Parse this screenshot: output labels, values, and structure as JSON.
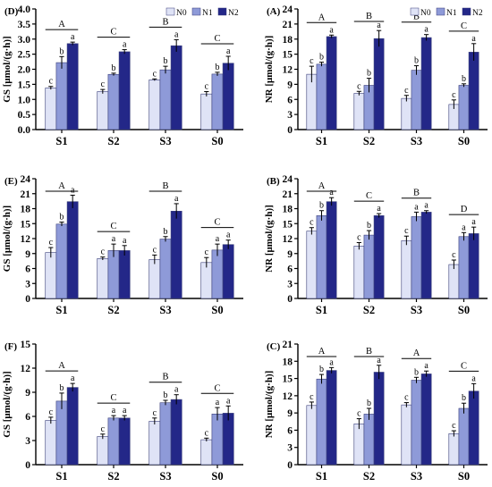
{
  "figure": {
    "legend_entries": [
      "N0",
      "N1",
      "N2"
    ],
    "colors": {
      "N0": "#dfe3f6",
      "N1": "#8e9ad8",
      "N2": "#232788"
    }
  },
  "chart_data": [
    {
      "type": "bar",
      "panel": "(D)",
      "ylabel": "GS [μmol/(g·h)]",
      "ylim": [
        0,
        4.0
      ],
      "yticks": [
        "0.0",
        "0.5",
        "1.0",
        "1.5",
        "2.0",
        "2.5",
        "3.0",
        "3.5",
        "4.0"
      ],
      "grid": false,
      "legend": "top-right",
      "categories": [
        "S1",
        "S2",
        "S3",
        "S0"
      ],
      "series": [
        {
          "name": "N0",
          "values": [
            1.38,
            1.26,
            1.65,
            1.18
          ],
          "errors": [
            0.05,
            0.07,
            0.03,
            0.08
          ],
          "letters": [
            "c",
            "c",
            "c",
            "c"
          ]
        },
        {
          "name": "N1",
          "values": [
            2.22,
            1.83,
            1.98,
            1.84
          ],
          "errors": [
            0.2,
            0.04,
            0.12,
            0.06
          ],
          "letters": [
            "b",
            "b",
            "b",
            "b"
          ]
        },
        {
          "name": "N2",
          "values": [
            2.85,
            2.58,
            2.78,
            2.2
          ],
          "errors": [
            0.05,
            0.07,
            0.2,
            0.23
          ],
          "letters": [
            "a",
            "a",
            "a",
            "a"
          ]
        }
      ],
      "group_letters": [
        "A",
        "C",
        "B",
        "C"
      ]
    },
    {
      "type": "bar",
      "panel": "(A)",
      "ylabel": "NR [μmol/(g·h)]",
      "ylim": [
        0,
        24
      ],
      "yticks": [
        "0",
        "3",
        "6",
        "9",
        "12",
        "15",
        "18",
        "21",
        "24"
      ],
      "grid": false,
      "legend": "top-right",
      "categories": [
        "S1",
        "S2",
        "S3",
        "S0"
      ],
      "series": [
        {
          "name": "N0",
          "values": [
            11.0,
            7.2,
            6.2,
            5.0
          ],
          "errors": [
            1.6,
            0.4,
            0.6,
            0.9
          ],
          "letters": [
            "c",
            "c",
            "c",
            "c"
          ]
        },
        {
          "name": "N1",
          "values": [
            13.0,
            8.8,
            11.8,
            8.8
          ],
          "errors": [
            0.4,
            1.4,
            0.9,
            0.3
          ],
          "letters": [
            "b",
            "b",
            "b",
            "b"
          ]
        },
        {
          "name": "N2",
          "values": [
            18.5,
            18.1,
            18.3,
            15.4
          ],
          "errors": [
            0.3,
            1.6,
            0.6,
            1.7
          ],
          "letters": [
            "a",
            "a",
            "a",
            "a"
          ]
        }
      ],
      "group_letters": [
        "A",
        "B",
        "B",
        "C"
      ]
    },
    {
      "type": "bar",
      "panel": "(E)",
      "ylabel": "GS [μmol/(g·h)]",
      "ylim": [
        0,
        24
      ],
      "yticks": [
        "0",
        "3",
        "6",
        "9",
        "12",
        "15",
        "18",
        "21",
        "24"
      ],
      "grid": false,
      "legend": "none",
      "categories": [
        "S1",
        "S2",
        "S3",
        "S0"
      ],
      "series": [
        {
          "name": "N0",
          "values": [
            9.2,
            8.0,
            7.8,
            7.2
          ],
          "errors": [
            1.0,
            0.3,
            0.9,
            1.0
          ],
          "letters": [
            "c",
            "c",
            "c",
            "c"
          ]
        },
        {
          "name": "N1",
          "values": [
            14.9,
            9.6,
            11.9,
            9.7
          ],
          "errors": [
            0.4,
            1.3,
            0.5,
            1.2
          ],
          "letters": [
            "b",
            "a",
            "b",
            "a"
          ]
        },
        {
          "name": "N2",
          "values": [
            19.4,
            9.6,
            17.5,
            10.8
          ],
          "errors": [
            1.3,
            1.0,
            1.5,
            0.9
          ],
          "letters": [
            "a",
            "a",
            "a",
            "a"
          ]
        }
      ],
      "group_letters": [
        "A",
        "C",
        "B",
        "C"
      ]
    },
    {
      "type": "bar",
      "panel": "(B)",
      "ylabel": "NR [μmol/(g·h)]",
      "ylim": [
        0,
        24
      ],
      "yticks": [
        "0",
        "3",
        "6",
        "9",
        "12",
        "15",
        "18",
        "21",
        "24"
      ],
      "grid": false,
      "legend": "none",
      "categories": [
        "S1",
        "S2",
        "S3",
        "S0"
      ],
      "series": [
        {
          "name": "N0",
          "values": [
            13.5,
            10.5,
            11.6,
            6.8
          ],
          "errors": [
            0.7,
            0.7,
            0.9,
            0.9
          ],
          "letters": [
            "c",
            "c",
            "c",
            "c"
          ]
        },
        {
          "name": "N1",
          "values": [
            16.6,
            12.7,
            16.4,
            12.4
          ],
          "errors": [
            1.0,
            0.9,
            0.9,
            0.8
          ],
          "letters": [
            "b",
            "b",
            "a",
            "a"
          ]
        },
        {
          "name": "N2",
          "values": [
            19.4,
            16.6,
            17.3,
            13.0
          ],
          "errors": [
            0.8,
            0.4,
            0.3,
            1.3
          ],
          "letters": [
            "a",
            "a",
            "a",
            "a"
          ]
        }
      ],
      "group_letters": [
        "A",
        "C",
        "B",
        "D"
      ]
    },
    {
      "type": "bar",
      "panel": "(F)",
      "ylabel": "GS [μmol/(g·h)]",
      "ylim": [
        0,
        15
      ],
      "yticks": [
        "0",
        "3",
        "6",
        "9",
        "12",
        "15"
      ],
      "grid": false,
      "legend": "none",
      "categories": [
        "S1",
        "S2",
        "S3",
        "S0"
      ],
      "series": [
        {
          "name": "N0",
          "values": [
            5.5,
            3.5,
            5.4,
            3.1
          ],
          "errors": [
            0.4,
            0.3,
            0.4,
            0.2
          ],
          "letters": [
            "c",
            "c",
            "c",
            "c"
          ]
        },
        {
          "name": "N1",
          "values": [
            7.9,
            5.8,
            7.7,
            6.3
          ],
          "errors": [
            1.0,
            0.3,
            0.3,
            0.8
          ],
          "letters": [
            "b",
            "a",
            "b",
            "a"
          ]
        },
        {
          "name": "N2",
          "values": [
            9.6,
            5.8,
            8.1,
            6.4
          ],
          "errors": [
            0.5,
            0.3,
            0.6,
            0.9
          ],
          "letters": [
            "a",
            "a",
            "a",
            "a"
          ]
        }
      ],
      "group_letters": [
        "A",
        "C",
        "B",
        "C"
      ]
    },
    {
      "type": "bar",
      "panel": "(C)",
      "ylabel": "NR [μmol/(g·h)]",
      "ylim": [
        0,
        21
      ],
      "yticks": [
        "0",
        "3",
        "6",
        "9",
        "12",
        "15",
        "18",
        "21"
      ],
      "grid": false,
      "legend": "none",
      "categories": [
        "S1",
        "S2",
        "S3",
        "S0"
      ],
      "series": [
        {
          "name": "N0",
          "values": [
            10.3,
            7.1,
            10.4,
            5.4
          ],
          "errors": [
            0.6,
            0.9,
            0.4,
            0.5
          ],
          "letters": [
            "c",
            "c",
            "c",
            "c"
          ]
        },
        {
          "name": "N1",
          "values": [
            14.9,
            8.8,
            14.7,
            9.8
          ],
          "errors": [
            0.8,
            1.0,
            0.5,
            0.9
          ],
          "letters": [
            "b",
            "b",
            "b",
            "b"
          ]
        },
        {
          "name": "N2",
          "values": [
            16.4,
            16.1,
            15.8,
            12.8
          ],
          "errors": [
            0.5,
            1.2,
            0.5,
            1.3
          ],
          "letters": [
            "a",
            "a",
            "a",
            "a"
          ]
        }
      ],
      "group_letters": [
        "A",
        "B",
        "A",
        "C"
      ]
    }
  ]
}
